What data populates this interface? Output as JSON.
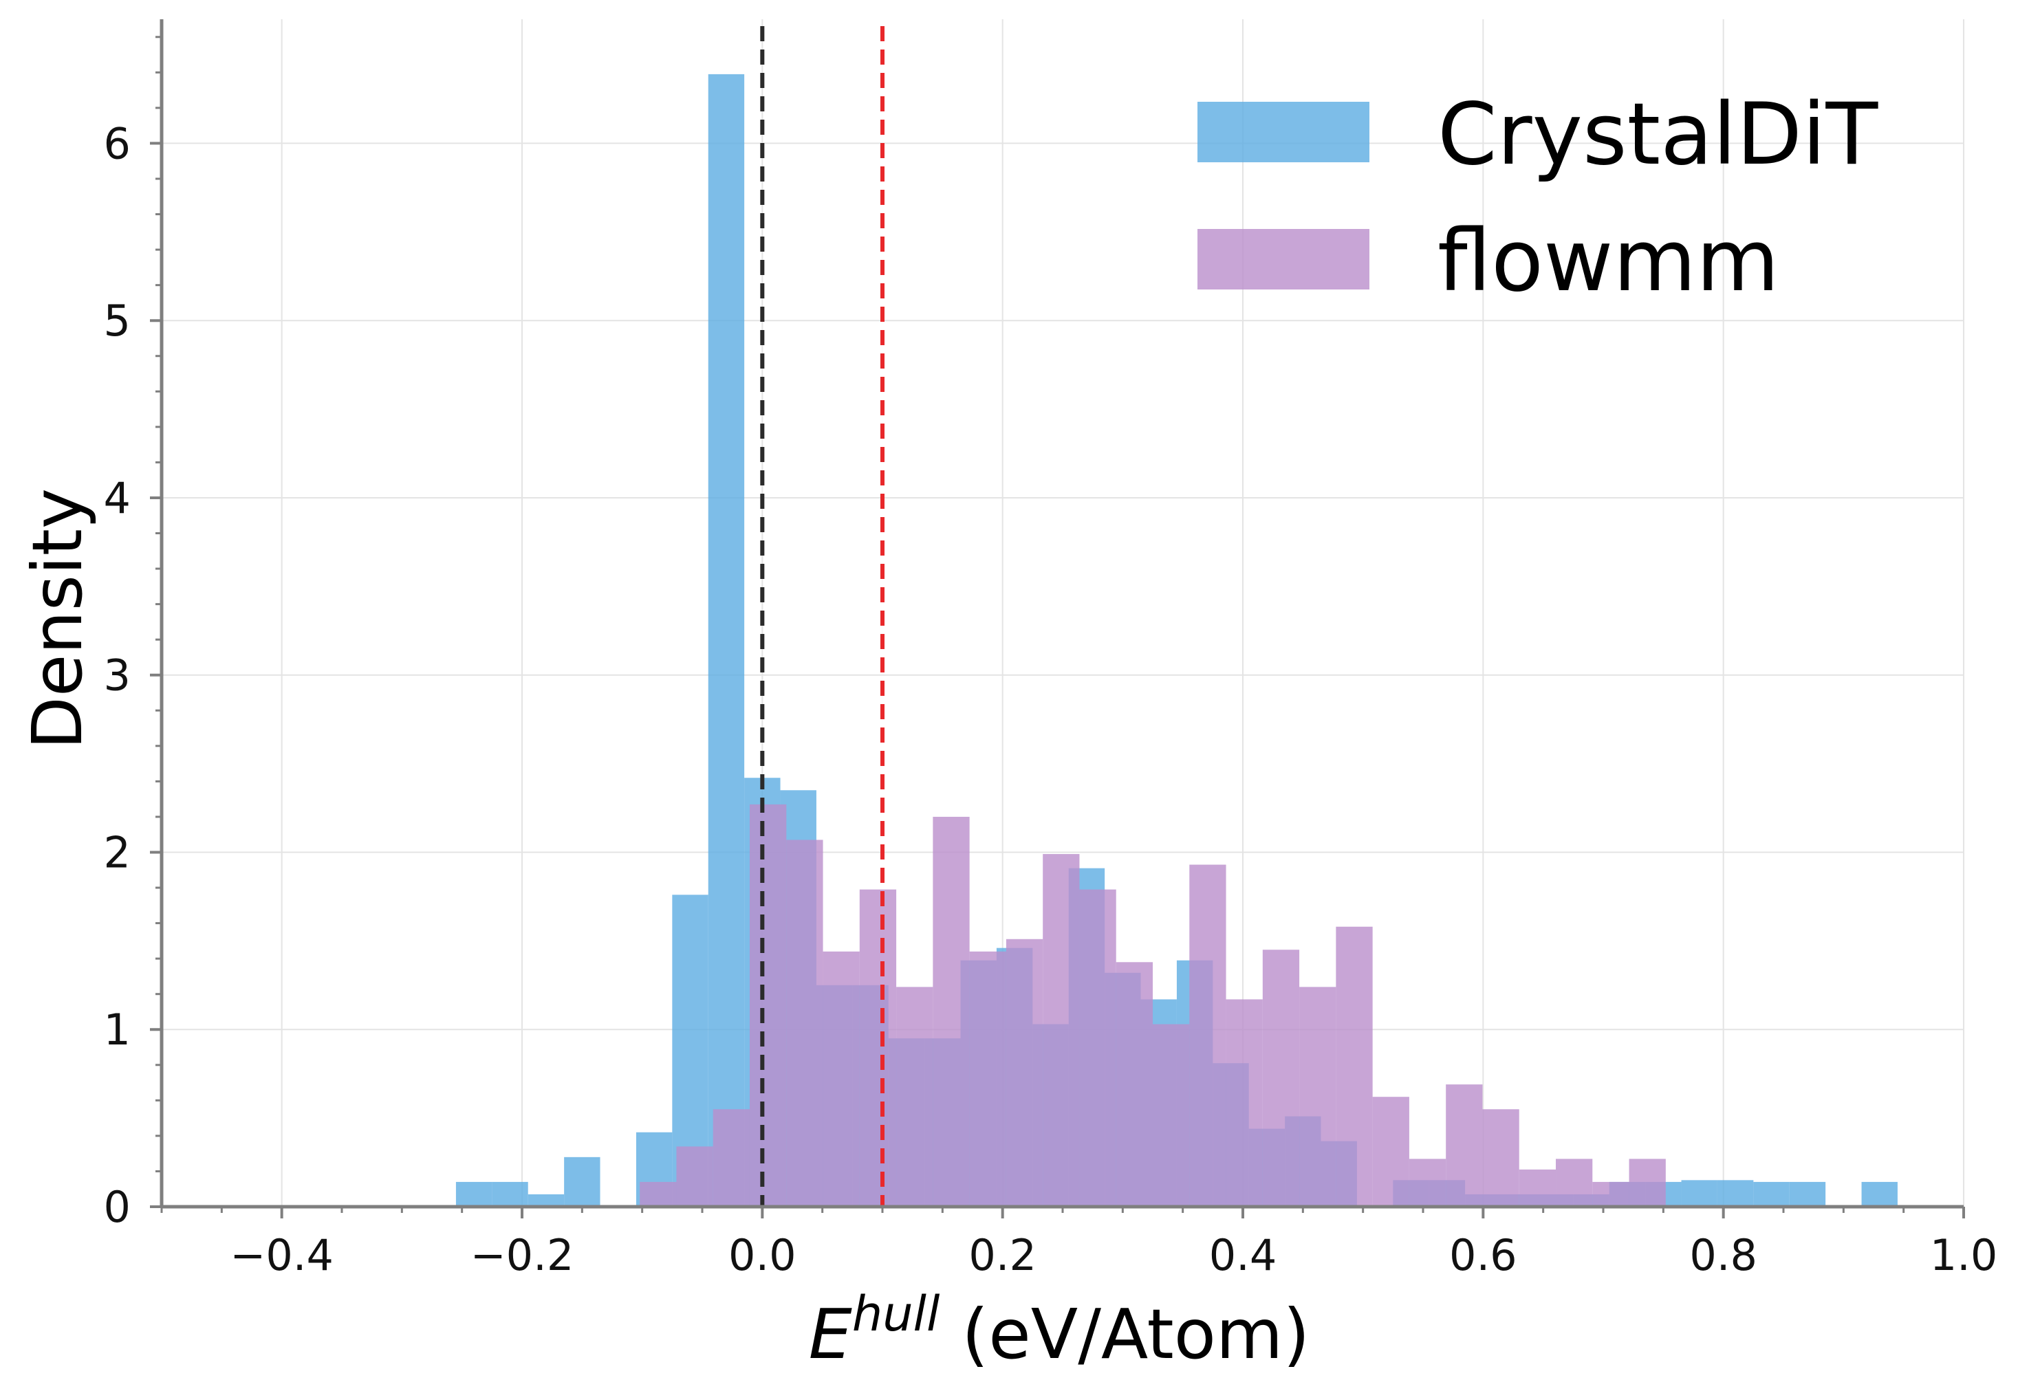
{
  "chart_data": {
    "type": "histogram",
    "title": "",
    "xlabel": {
      "main": "E",
      "sup": "hull",
      "unit": " (eV/Atom)"
    },
    "ylabel": "Density",
    "xlim": [
      -0.5,
      1.0
    ],
    "ylim": [
      0,
      6.7
    ],
    "xticks": [
      -0.4,
      -0.2,
      0.0,
      0.2,
      0.4,
      0.6,
      0.8,
      1.0
    ],
    "xtick_labels": [
      "−0.4",
      "−0.2",
      "0.0",
      "0.2",
      "0.4",
      "0.6",
      "0.8",
      "1.0"
    ],
    "yticks": [
      0,
      1,
      2,
      3,
      4,
      5,
      6
    ],
    "ytick_labels": [
      "0",
      "1",
      "2",
      "3",
      "4",
      "5",
      "6"
    ],
    "x_minor_step": 0.05,
    "y_minor_step": 0.2,
    "grid": true,
    "legend_position": "top-right",
    "series": [
      {
        "name": "CrystalDiT",
        "color": "#5DADE2",
        "opacity": 0.8,
        "bin_width": 0.03,
        "bin_start": -0.255,
        "values": [
          0.14,
          0.14,
          0.07,
          0.28,
          0,
          0.42,
          1.76,
          6.39,
          2.42,
          2.35,
          1.25,
          1.25,
          0.95,
          0.95,
          1.39,
          1.46,
          1.03,
          1.91,
          1.32,
          1.17,
          1.39,
          0.81,
          0.44,
          0.51,
          0.37,
          0,
          0.15,
          0.15,
          0.07,
          0.07,
          0.07,
          0.07,
          0.14,
          0.14,
          0.15,
          0.15,
          0.14,
          0.14,
          0,
          0.14
        ]
      },
      {
        "name": "flowmm",
        "color": "#BA8FCC",
        "opacity": 0.8,
        "bin_width": 0.0305,
        "bin_start": -0.102,
        "values": [
          0.14,
          0.34,
          0.55,
          2.27,
          2.07,
          1.44,
          1.79,
          1.24,
          2.2,
          1.44,
          1.51,
          1.99,
          1.79,
          1.38,
          1.03,
          1.93,
          1.17,
          1.45,
          1.24,
          1.58,
          0.62,
          0.27,
          0.69,
          0.55,
          0.21,
          0.27,
          0.14,
          0.27
        ]
      }
    ],
    "reference_lines": [
      {
        "x": 0.0,
        "color": "#2b2b2b",
        "style": "dashed"
      },
      {
        "x": 0.1,
        "color": "#E8282B",
        "style": "dashed"
      }
    ]
  }
}
